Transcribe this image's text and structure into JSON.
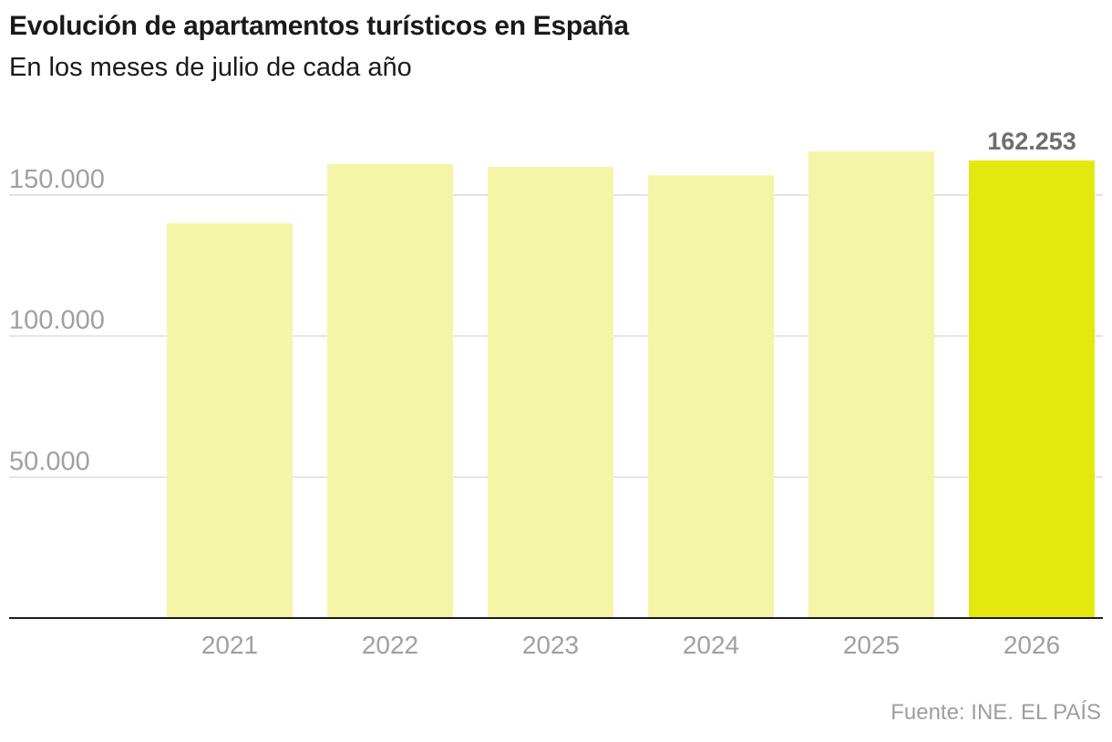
{
  "chart_data": {
    "type": "bar",
    "title": "Evolución de apartamentos turísticos en España",
    "subtitle": "En los meses de julio de cada año",
    "categories": [
      "2021",
      "2022",
      "2023",
      "2024",
      "2025",
      "2026"
    ],
    "values": [
      140000,
      161000,
      160000,
      157000,
      165500,
      162253
    ],
    "highlight_index": 5,
    "highlight_label": "162.253",
    "y_ticks": [
      50000,
      100000,
      150000
    ],
    "y_tick_labels": [
      "50.000",
      "100.000",
      "150.000"
    ],
    "ylim": [
      0,
      170000
    ],
    "grid": true,
    "colors": {
      "bar": "#f5f5a8",
      "highlight": "#e3e80f",
      "grid": "#dcdcdc",
      "axis": "#1a1a1a",
      "tick_text": "#a0a0a0",
      "value_label": "#6e6e6e"
    },
    "source": "Fuente: INE.",
    "source_outlet": "EL PAÍS"
  }
}
